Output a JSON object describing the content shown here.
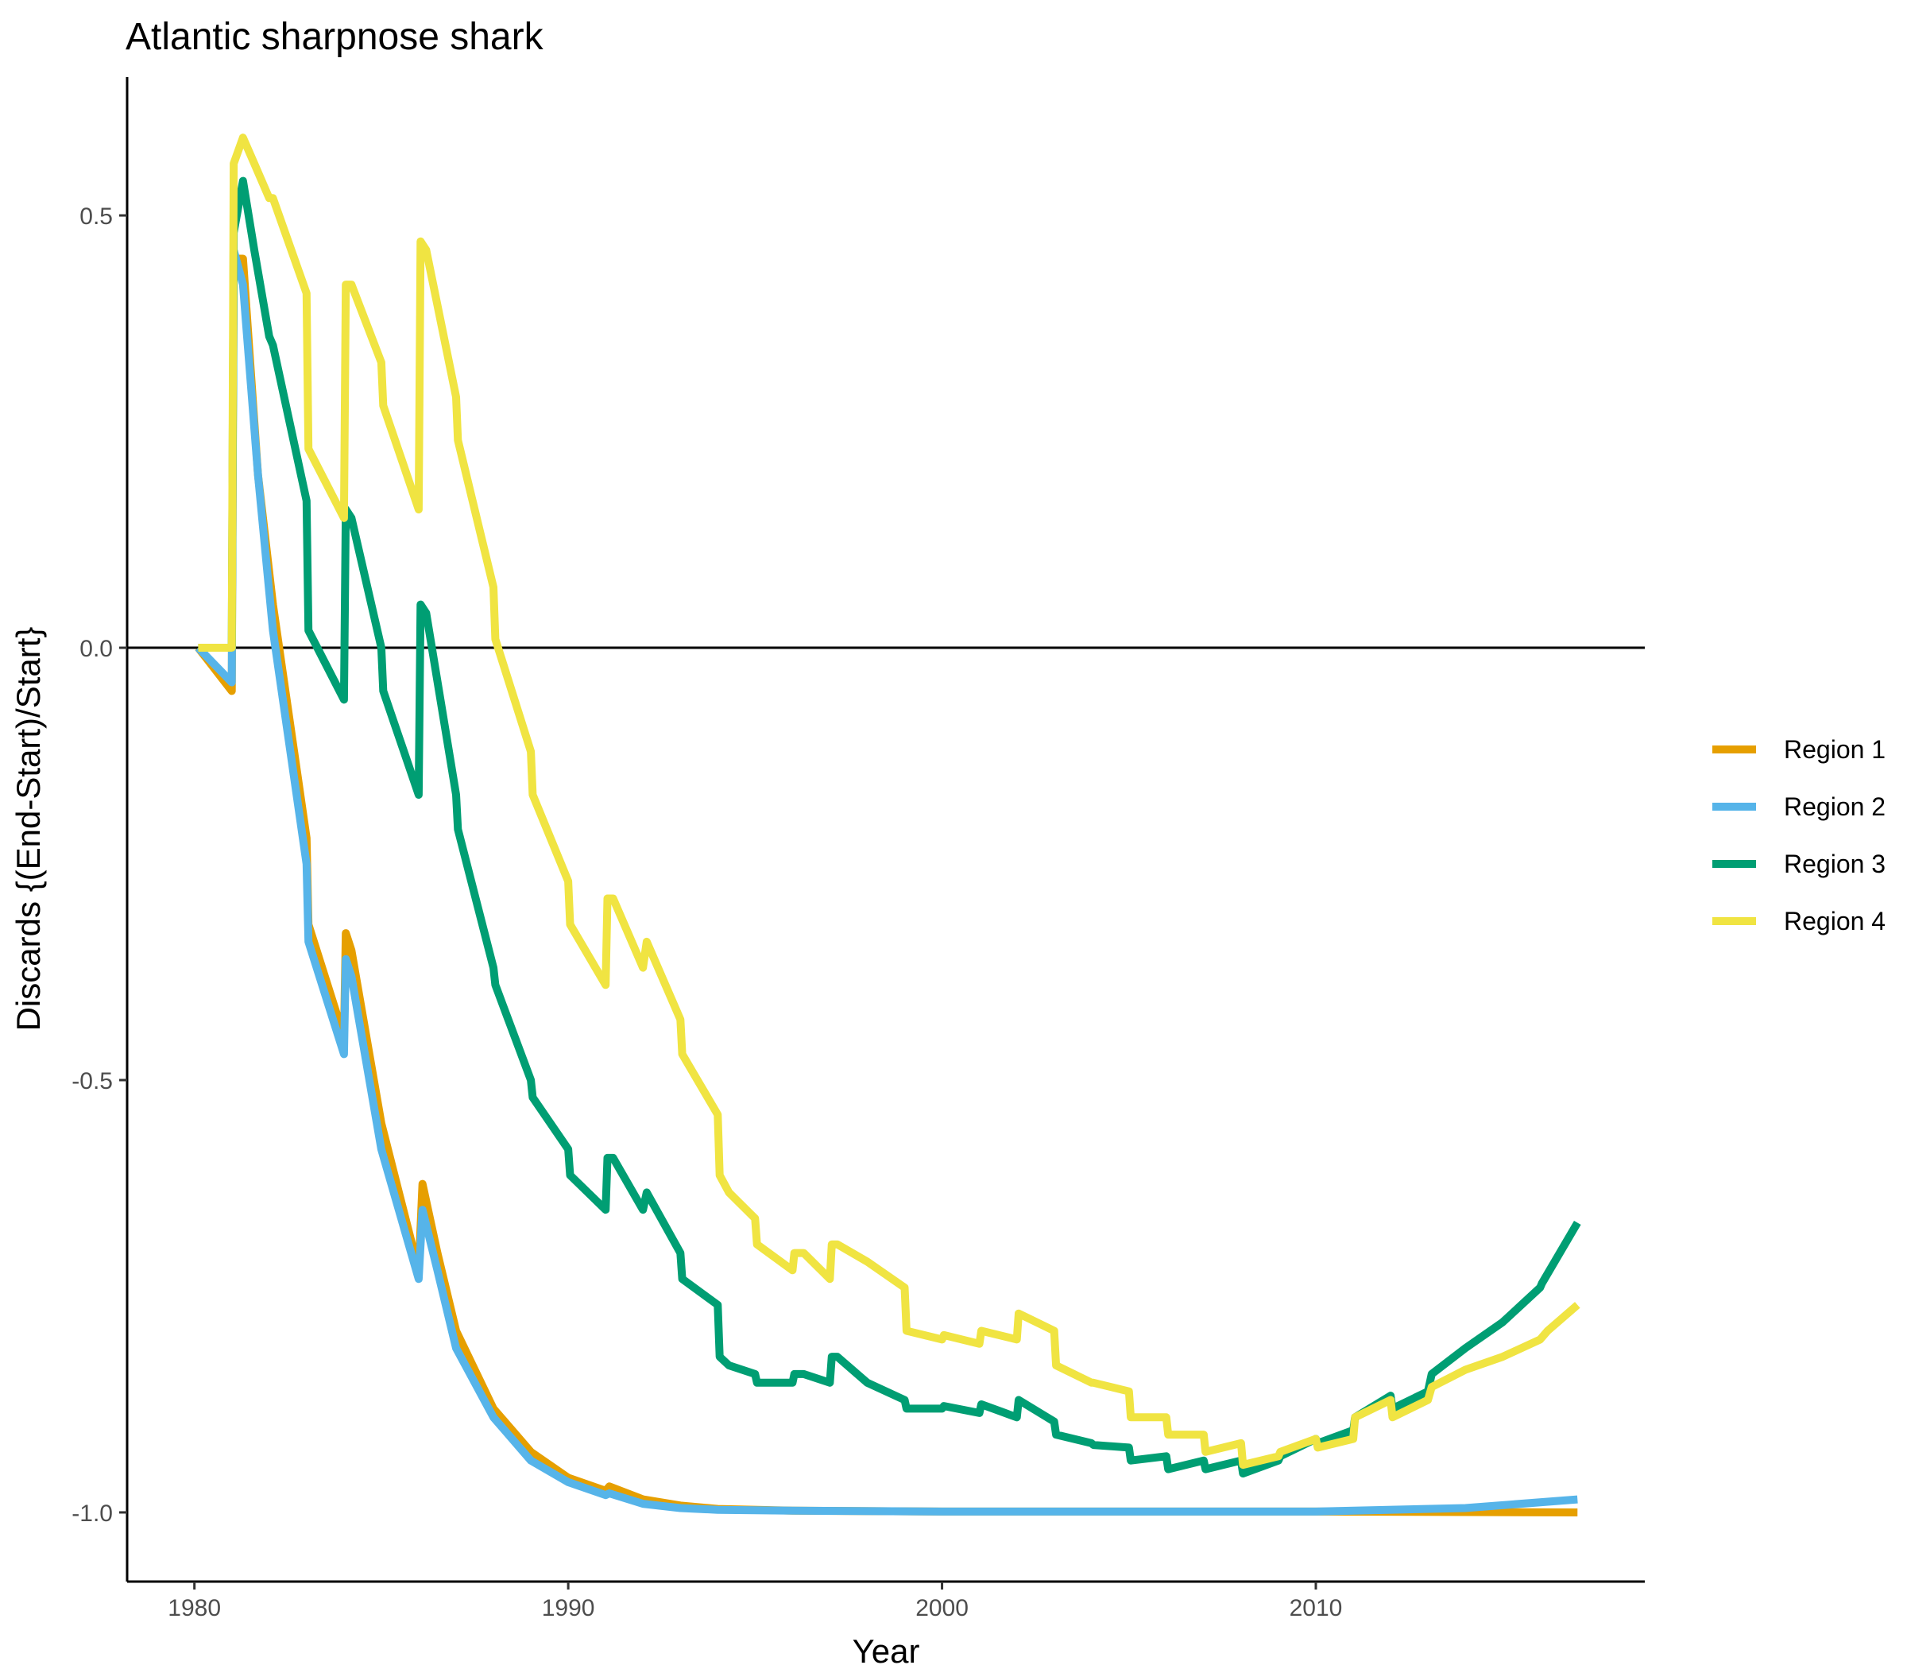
{
  "chart_data": {
    "type": "line",
    "title": "Atlantic sharpnose shark",
    "xlabel": "Year",
    "ylabel": "Discards {(End-Start)/Start}",
    "xlim": [
      1978.2,
      2018.8
    ],
    "ylim": [
      -1.08,
      0.66
    ],
    "x_ticks": [
      1980,
      1990,
      2000,
      2010
    ],
    "y_ticks": [
      -1.0,
      -0.5,
      0.0,
      0.5
    ],
    "x_tick_labels": [
      "1980",
      "1990",
      "2000",
      "2010"
    ],
    "y_tick_labels": [
      "-1.0",
      "-0.5",
      "0.0",
      "0.5"
    ],
    "reference_line_y": 0,
    "grid": false,
    "legend_position": "right",
    "series": [
      {
        "name": "Region 1",
        "color": "#E69F00",
        "points": [
          [
            1980.1,
            0.0
          ],
          [
            1981.0,
            -0.05
          ],
          [
            1981.05,
            0.45
          ],
          [
            1981.3,
            0.45
          ],
          [
            1981.7,
            0.2
          ],
          [
            1982.1,
            0.05
          ],
          [
            1983.0,
            -0.22
          ],
          [
            1983.05,
            -0.32
          ],
          [
            1984.0,
            -0.45
          ],
          [
            1984.05,
            -0.33
          ],
          [
            1984.2,
            -0.35
          ],
          [
            1985.0,
            -0.55
          ],
          [
            1986.0,
            -0.72
          ],
          [
            1986.1,
            -0.62
          ],
          [
            1986.5,
            -0.7
          ],
          [
            1987.0,
            -0.79
          ],
          [
            1988.0,
            -0.88
          ],
          [
            1989.0,
            -0.93
          ],
          [
            1990.0,
            -0.96
          ],
          [
            1991.0,
            -0.975
          ],
          [
            1991.1,
            -0.97
          ],
          [
            1992.0,
            -0.985
          ],
          [
            1993.0,
            -0.992
          ],
          [
            1994.0,
            -0.996
          ],
          [
            1996.0,
            -0.998
          ],
          [
            2000.0,
            -0.999
          ],
          [
            2005.0,
            -0.999
          ],
          [
            2010.0,
            -0.999
          ],
          [
            2017.0,
            -1.0
          ]
        ]
      },
      {
        "name": "Region 2",
        "color": "#56B4E9",
        "points": [
          [
            1980.1,
            0.0
          ],
          [
            1981.0,
            -0.04
          ],
          [
            1981.05,
            0.46
          ],
          [
            1981.3,
            0.42
          ],
          [
            1981.7,
            0.2
          ],
          [
            1982.1,
            0.02
          ],
          [
            1983.0,
            -0.25
          ],
          [
            1983.05,
            -0.34
          ],
          [
            1984.0,
            -0.47
          ],
          [
            1984.05,
            -0.36
          ],
          [
            1984.2,
            -0.38
          ],
          [
            1985.0,
            -0.58
          ],
          [
            1986.0,
            -0.73
          ],
          [
            1986.1,
            -0.65
          ],
          [
            1986.5,
            -0.72
          ],
          [
            1987.0,
            -0.81
          ],
          [
            1988.0,
            -0.89
          ],
          [
            1989.0,
            -0.94
          ],
          [
            1990.0,
            -0.965
          ],
          [
            1991.0,
            -0.98
          ],
          [
            1991.1,
            -0.978
          ],
          [
            1992.0,
            -0.99
          ],
          [
            1993.0,
            -0.995
          ],
          [
            1994.0,
            -0.997
          ],
          [
            1996.0,
            -0.998
          ],
          [
            2000.0,
            -0.999
          ],
          [
            2005.0,
            -0.999
          ],
          [
            2010.0,
            -0.999
          ],
          [
            2014.0,
            -0.995
          ],
          [
            2017.0,
            -0.985
          ]
        ]
      },
      {
        "name": "Region 3",
        "color": "#009E73",
        "points": [
          [
            1980.1,
            0.0
          ],
          [
            1981.0,
            0.0
          ],
          [
            1981.05,
            0.48
          ],
          [
            1981.3,
            0.54
          ],
          [
            1981.6,
            0.46
          ],
          [
            1982.0,
            0.36
          ],
          [
            1982.1,
            0.35
          ],
          [
            1983.0,
            0.17
          ],
          [
            1983.05,
            0.02
          ],
          [
            1984.0,
            -0.06
          ],
          [
            1984.05,
            0.16
          ],
          [
            1984.2,
            0.15
          ],
          [
            1985.0,
            0.0
          ],
          [
            1985.05,
            -0.05
          ],
          [
            1986.0,
            -0.17
          ],
          [
            1986.05,
            0.05
          ],
          [
            1986.2,
            0.04
          ],
          [
            1987.0,
            -0.17
          ],
          [
            1987.05,
            -0.21
          ],
          [
            1988.0,
            -0.37
          ],
          [
            1988.05,
            -0.39
          ],
          [
            1989.0,
            -0.5
          ],
          [
            1989.05,
            -0.52
          ],
          [
            1990.0,
            -0.58
          ],
          [
            1990.05,
            -0.61
          ],
          [
            1991.0,
            -0.65
          ],
          [
            1991.05,
            -0.59
          ],
          [
            1991.2,
            -0.59
          ],
          [
            1992.0,
            -0.65
          ],
          [
            1992.1,
            -0.63
          ],
          [
            1993.0,
            -0.7
          ],
          [
            1993.05,
            -0.73
          ],
          [
            1994.0,
            -0.76
          ],
          [
            1994.05,
            -0.82
          ],
          [
            1994.3,
            -0.83
          ],
          [
            1995.0,
            -0.84
          ],
          [
            1995.05,
            -0.85
          ],
          [
            1996.0,
            -0.85
          ],
          [
            1996.05,
            -0.84
          ],
          [
            1996.3,
            -0.84
          ],
          [
            1997.0,
            -0.85
          ],
          [
            1997.05,
            -0.82
          ],
          [
            1997.2,
            -0.82
          ],
          [
            1998.0,
            -0.85
          ],
          [
            1999.0,
            -0.87
          ],
          [
            1999.05,
            -0.88
          ],
          [
            2000.0,
            -0.88
          ],
          [
            2000.05,
            -0.877
          ],
          [
            2001.0,
            -0.885
          ],
          [
            2001.05,
            -0.875
          ],
          [
            2002.0,
            -0.89
          ],
          [
            2002.05,
            -0.87
          ],
          [
            2003.0,
            -0.895
          ],
          [
            2003.05,
            -0.91
          ],
          [
            2004.0,
            -0.92
          ],
          [
            2004.05,
            -0.922
          ],
          [
            2005.0,
            -0.925
          ],
          [
            2005.05,
            -0.94
          ],
          [
            2006.0,
            -0.935
          ],
          [
            2006.05,
            -0.95
          ],
          [
            2007.0,
            -0.94
          ],
          [
            2007.05,
            -0.95
          ],
          [
            2008.0,
            -0.94
          ],
          [
            2008.05,
            -0.955
          ],
          [
            2009.0,
            -0.94
          ],
          [
            2009.05,
            -0.935
          ],
          [
            2010.0,
            -0.915
          ],
          [
            2010.05,
            -0.92
          ],
          [
            2011.0,
            -0.905
          ],
          [
            2011.05,
            -0.89
          ],
          [
            2012.0,
            -0.865
          ],
          [
            2012.05,
            -0.88
          ],
          [
            2013.0,
            -0.86
          ],
          [
            2013.1,
            -0.84
          ],
          [
            2014.0,
            -0.81
          ],
          [
            2015.0,
            -0.78
          ],
          [
            2016.0,
            -0.74
          ],
          [
            2016.05,
            -0.735
          ],
          [
            2017.0,
            -0.665
          ]
        ]
      },
      {
        "name": "Region 4",
        "color": "#F0E442",
        "points": [
          [
            1980.1,
            0.0
          ],
          [
            1981.0,
            0.0
          ],
          [
            1981.05,
            0.56
          ],
          [
            1981.3,
            0.59
          ],
          [
            1981.6,
            0.56
          ],
          [
            1982.0,
            0.52
          ],
          [
            1982.1,
            0.52
          ],
          [
            1983.0,
            0.41
          ],
          [
            1983.05,
            0.23
          ],
          [
            1984.0,
            0.15
          ],
          [
            1984.05,
            0.42
          ],
          [
            1984.2,
            0.42
          ],
          [
            1985.0,
            0.33
          ],
          [
            1985.05,
            0.28
          ],
          [
            1986.0,
            0.16
          ],
          [
            1986.05,
            0.47
          ],
          [
            1986.2,
            0.46
          ],
          [
            1987.0,
            0.29
          ],
          [
            1987.05,
            0.24
          ],
          [
            1988.0,
            0.07
          ],
          [
            1988.05,
            0.01
          ],
          [
            1989.0,
            -0.12
          ],
          [
            1989.05,
            -0.17
          ],
          [
            1990.0,
            -0.27
          ],
          [
            1990.05,
            -0.32
          ],
          [
            1991.0,
            -0.39
          ],
          [
            1991.05,
            -0.29
          ],
          [
            1991.2,
            -0.29
          ],
          [
            1992.0,
            -0.37
          ],
          [
            1992.1,
            -0.34
          ],
          [
            1993.0,
            -0.43
          ],
          [
            1993.05,
            -0.47
          ],
          [
            1994.0,
            -0.54
          ],
          [
            1994.05,
            -0.61
          ],
          [
            1994.3,
            -0.63
          ],
          [
            1995.0,
            -0.66
          ],
          [
            1995.05,
            -0.69
          ],
          [
            1996.0,
            -0.72
          ],
          [
            1996.05,
            -0.7
          ],
          [
            1996.3,
            -0.7
          ],
          [
            1997.0,
            -0.73
          ],
          [
            1997.05,
            -0.69
          ],
          [
            1997.2,
            -0.69
          ],
          [
            1998.0,
            -0.71
          ],
          [
            1999.0,
            -0.74
          ],
          [
            1999.05,
            -0.79
          ],
          [
            2000.0,
            -0.8
          ],
          [
            2000.05,
            -0.795
          ],
          [
            2001.0,
            -0.805
          ],
          [
            2001.05,
            -0.79
          ],
          [
            2002.0,
            -0.8
          ],
          [
            2002.05,
            -0.77
          ],
          [
            2003.0,
            -0.79
          ],
          [
            2003.05,
            -0.83
          ],
          [
            2004.0,
            -0.85
          ],
          [
            2004.05,
            -0.85
          ],
          [
            2005.0,
            -0.86
          ],
          [
            2005.05,
            -0.89
          ],
          [
            2006.0,
            -0.89
          ],
          [
            2006.05,
            -0.91
          ],
          [
            2007.0,
            -0.91
          ],
          [
            2007.05,
            -0.93
          ],
          [
            2008.0,
            -0.92
          ],
          [
            2008.05,
            -0.945
          ],
          [
            2009.0,
            -0.935
          ],
          [
            2009.05,
            -0.93
          ],
          [
            2010.0,
            -0.915
          ],
          [
            2010.05,
            -0.925
          ],
          [
            2011.0,
            -0.915
          ],
          [
            2011.05,
            -0.89
          ],
          [
            2012.0,
            -0.87
          ],
          [
            2012.05,
            -0.89
          ],
          [
            2013.0,
            -0.87
          ],
          [
            2013.1,
            -0.855
          ],
          [
            2014.0,
            -0.835
          ],
          [
            2015.0,
            -0.82
          ],
          [
            2016.0,
            -0.8
          ],
          [
            2016.2,
            -0.79
          ],
          [
            2017.0,
            -0.76
          ]
        ]
      }
    ]
  }
}
